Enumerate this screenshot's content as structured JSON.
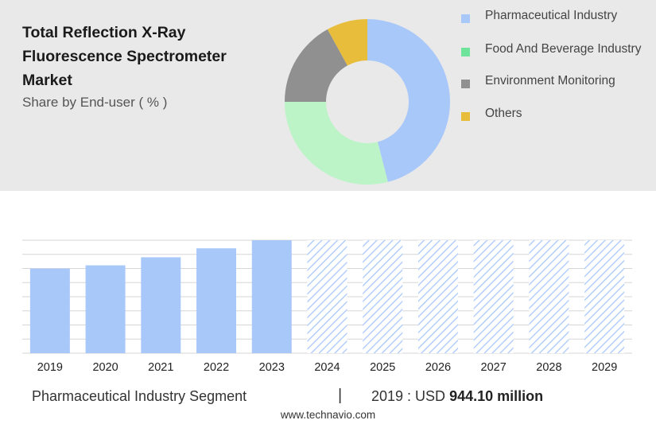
{
  "title": "Total Reflection X-Ray Fluorescence Spectrometer Market",
  "subtitle": "Share by End-user ( % )",
  "legend": [
    {
      "label": "Pharmaceutical Industry",
      "color": "#a9c8fa"
    },
    {
      "label": "Food And Beverage Industry",
      "color": "#6ee39a"
    },
    {
      "label": "Environment Monitoring",
      "color": "#909090"
    },
    {
      "label": "Others",
      "color": "#e8bd3c"
    }
  ],
  "footer": {
    "segment": "Pharmaceutical Industry Segment",
    "separator": "|",
    "year_prefix": "2019 : USD",
    "value": "944.10 million"
  },
  "source": "www.technavio.com",
  "chart_data": [
    {
      "type": "pie",
      "donut": true,
      "labels": [
        "Pharmaceutical Industry",
        "Food And Beverage Industry",
        "Environment Monitoring",
        "Others"
      ],
      "values": [
        46,
        29,
        17,
        8
      ],
      "colors": [
        "#a9c8fa",
        "#bcf4c7",
        "#909090",
        "#e8bd3c"
      ]
    },
    {
      "type": "bar",
      "categories": [
        "2019",
        "2020",
        "2021",
        "2022",
        "2023",
        "2024",
        "2025",
        "2026",
        "2027",
        "2028",
        "2029"
      ],
      "values": [
        944.1,
        980,
        1070,
        1170,
        1260,
        1260,
        1260,
        1260,
        1260,
        1260,
        1260
      ],
      "forecast_from": "2024",
      "bar_color": "#a9c8fa",
      "ylim": [
        0,
        1260
      ],
      "grid": true
    }
  ]
}
